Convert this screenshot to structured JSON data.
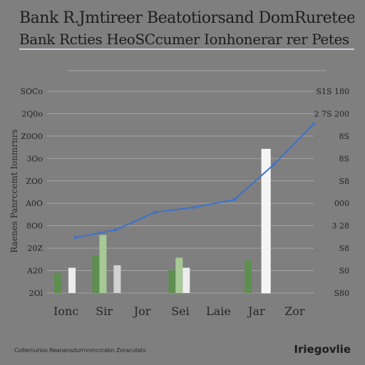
{
  "header": {
    "title": "Bank R.Jmtireer Beatotiorsand DomRuretee",
    "subtitle": "Bank Rcties HeoSCcumer Ionhonerar rer Petes"
  },
  "chart_data": {
    "type": "bar",
    "title": "Bank R.Jmtireer Beatotiorsand DomRuretee",
    "subtitle": "Bank Rcties HeoSCcumer Ionhonerar rer Petes",
    "ylabel": "Raenes Panrccemt Ionmrnrs",
    "ylim": [
      0,
      400
    ],
    "grid": true,
    "left_ticks": [
      "SOCo",
      "2Q0o",
      "Z0O0",
      "3Oo",
      "ZO0",
      "A0O",
      "8O0",
      "20Z",
      "A20",
      "2Ol"
    ],
    "right_ticks": [
      "S1S 180",
      "2 7S 200",
      "8S",
      "8S",
      "S8",
      "000",
      "3 28",
      "S8",
      "S0",
      "S80"
    ],
    "categories": [
      "Ionc",
      "Sir",
      "Jor",
      "Sei",
      "Laie",
      "Jar",
      "Zor"
    ],
    "series": [
      {
        "name": "",
        "color": "#5e8e50",
        "values": [
          40,
          75,
          0,
          45,
          0,
          65,
          0
        ]
      },
      {
        "name": "",
        "color": "#a6c996",
        "values": [
          0,
          115,
          0,
          70,
          0,
          0,
          0
        ]
      },
      {
        "name": "",
        "color": "#ececec",
        "values": [
          50,
          0,
          0,
          50,
          0,
          0,
          0
        ]
      },
      {
        "name": "",
        "color": "#d2d2d2",
        "values": [
          0,
          55,
          0,
          0,
          0,
          0,
          0
        ]
      }
    ],
    "highlight": {
      "category_index": 5,
      "value": 285,
      "color": "#f4f4f4"
    },
    "trend_line": {
      "color": "#3d72cb",
      "values": [
        110,
        125,
        160,
        170,
        185,
        255,
        335
      ]
    }
  },
  "footer": {
    "source": "Coltemurioo Reanensdurrnnmcrcebn Zoracutats",
    "brand": "Iriegovlie"
  }
}
